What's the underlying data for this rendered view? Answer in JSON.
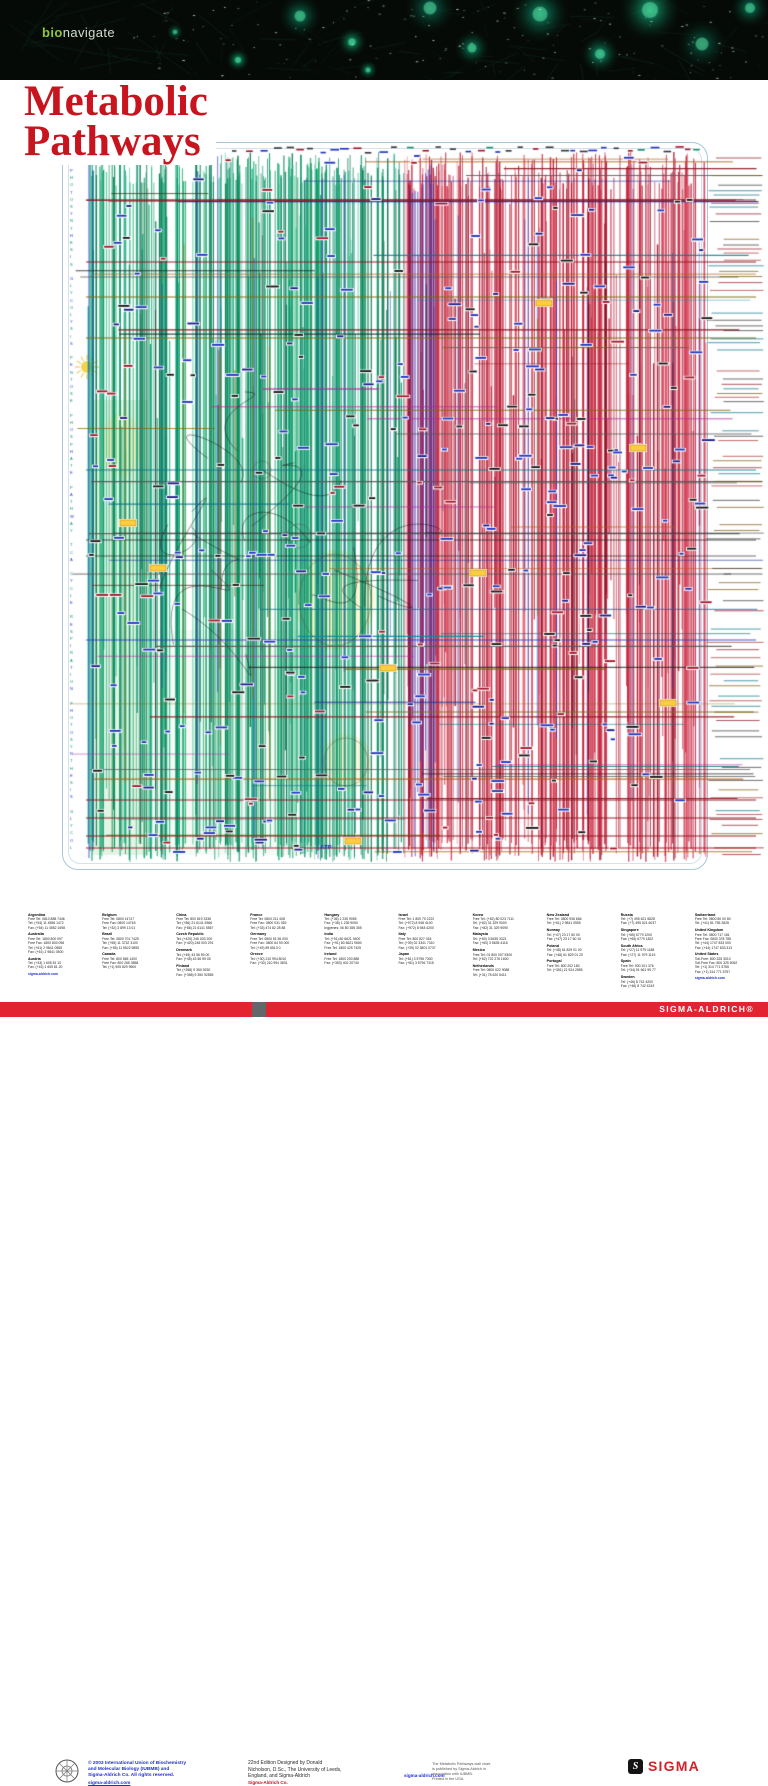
{
  "banner": {
    "brand_bio": "bio",
    "brand_rest": "navigate",
    "bg_color": "#060a07",
    "palette": [
      "#0a7d5d",
      "#0f9e6d",
      "#0a6e55",
      "#0c8a62",
      "#0e8f6a",
      "#129a72",
      "#15a578",
      "#0a5f49"
    ]
  },
  "title": {
    "line1": "Metabolic",
    "line2": "Pathways",
    "color": "#c8141e"
  },
  "chart": {
    "border_color": "#a9c6da",
    "green_palette": [
      "#0a9a6a",
      "#0d8f73",
      "#12a05e",
      "#067a52",
      "#17b27a",
      "#0b8c60",
      "#2fbf8f",
      "#0f7f5f"
    ],
    "red_palette": [
      "#c41f3a",
      "#b3122f",
      "#d43a50",
      "#a00f28",
      "#e05565",
      "#cb2742"
    ],
    "horizontal_palette": [
      "#8b1520",
      "#7a6a10",
      "#0b7285",
      "#1a2f9e",
      "#222222",
      "#b05c10",
      "#8b1520",
      "#b0269c",
      "#0b8a9e",
      "#555555"
    ],
    "label_blue": "#1a2fbf",
    "highlight_yellow": "#ffce3e",
    "atp_label": "ATP",
    "margin_letters": "PHOTOSYNTHESIS GLYCOLYSIS PENTOSE PHOSPHATE PATHWAY TCA CYCLE RESPIRATION "
  },
  "credits": {
    "copyright_lines": [
      "© 2003 International Union of Biochemistry",
      "and Molecular Biology (IUBMB) and",
      "Sigma-Aldrich Co. All rights reserved."
    ],
    "website": "sigma-aldrich.com",
    "edition_lines": [
      "22nd Edition Designed by Donald",
      "Nicholson, D.Sc., The University of Leeds,",
      "England, and Sigma-Aldrich"
    ],
    "sigma_note": "Sigma-Aldrich Co.",
    "fineprint_lines": [
      "The Metabolic Pathways wall chart",
      "is published by Sigma-Aldrich in",
      "association with IUBMB.",
      "Printed in the USA."
    ],
    "logo_text": "SIGMA",
    "logo_glyph": "S"
  },
  "offices": {
    "columns": [
      {
        "entries": [
          {
            "name": "Argentina",
            "lines": [
              "Free Tel: 0810 888 7446",
              "Tel: (+54) 11 4556 1472",
              "Fax: (+54) 11 4552 1698"
            ]
          },
          {
            "name": "Australia",
            "lines": [
              "Free Tel: 1800 800 097",
              "Free Fax: 1800 800 096",
              "Tel: (+61) 2 9841 0555",
              "Fax: (+61) 2 9841 0500"
            ]
          },
          {
            "name": "Austria",
            "lines": [
              "Tel: (+43) 1 605 81 10",
              "Fax: (+43) 1 605 81 20"
            ],
            "link": "sigma-aldrich.com"
          }
        ]
      },
      {
        "entries": [
          {
            "name": "Belgium",
            "lines": [
              "Free Tel: 0800 14747",
              "Free Fax: 0800 14745",
              "Tel: (+32) 3 899 13 01"
            ]
          },
          {
            "name": "Brazil",
            "lines": [
              "Free Tel: 0800 701 7425",
              "Tel: (+55) 11 3732 3100",
              "Fax: (+55) 11 5522 9895"
            ]
          },
          {
            "name": "Canada",
            "lines": [
              "Free Tel: 800 565 1400",
              "Free Fax: 800 265 3858",
              "Tel: (+1) 905 829 9500"
            ]
          }
        ]
      },
      {
        "entries": [
          {
            "name": "China",
            "lines": [
              "Free Tel: 800 819 3336",
              "Tel: (+86) 21 6141 5566",
              "Fax: (+86) 21 6141 5567"
            ]
          },
          {
            "name": "Czech Republic",
            "lines": [
              "Tel: (+420) 246 003 200",
              "Fax: (+420) 246 003 291"
            ]
          },
          {
            "name": "Denmark",
            "lines": [
              "Tel: (+45) 43 56 59 00",
              "Fax: (+45) 43 56 59 05"
            ]
          },
          {
            "name": "Finland",
            "lines": [
              "Tel: (+358) 9 350 9250",
              "Fax: (+358) 9 350 92555"
            ]
          }
        ]
      },
      {
        "entries": [
          {
            "name": "France",
            "lines": [
              "Free Tel: 0800 211 408",
              "Free Fax: 0800 031 052",
              "Tel: (+33) 474 82 28 88"
            ]
          },
          {
            "name": "Germany",
            "lines": [
              "Free Tel: 0800 51 55 000",
              "Free Fax: 0800 64 90 000",
              "Tel: (+49) 89 6513 0"
            ]
          },
          {
            "name": "Greece",
            "lines": [
              "Tel: (+30) 210 994 8010",
              "Fax: (+30) 210 994 3831"
            ]
          }
        ]
      },
      {
        "entries": [
          {
            "name": "Hungary",
            "lines": [
              "Tel: (+36) 1 235 9055",
              "Fax: (+36) 1 235 9050",
              "Ingyenes: 06 80 355 355"
            ]
          },
          {
            "name": "India",
            "lines": [
              "Tel: (+91) 80 6621 9400",
              "Fax: (+91) 80 6621 9650",
              "Free Tel: 1800 425 7425"
            ]
          },
          {
            "name": "Ireland",
            "lines": [
              "Free Tel: 1800 200 888",
              "Fax: (+353) 402 20740"
            ]
          }
        ]
      },
      {
        "entries": [
          {
            "name": "Israel",
            "lines": [
              "Free Tel: 1 800 70 2222",
              "Tel: (+972) 8 948 4100",
              "Fax: (+972) 8 948 4200"
            ]
          },
          {
            "name": "Italy",
            "lines": [
              "Free Tel: 800 827 018",
              "Tel: (+39) 02 3341 7310",
              "Fax: (+39) 02 3801 0737"
            ]
          },
          {
            "name": "Japan",
            "lines": [
              "Tel: (+81) 3 5796 7300",
              "Fax: (+81) 3 5796 7315"
            ]
          }
        ]
      },
      {
        "entries": [
          {
            "name": "Korea",
            "lines": [
              "Free Tel: (+82) 80 023 7111",
              "Tel: (+82) 31 329 9000",
              "Fax: (+82) 31 329 9090"
            ]
          },
          {
            "name": "Malaysia",
            "lines": [
              "Tel: (+60) 3 5635 3321",
              "Fax: (+60) 3 5635 4116"
            ]
          },
          {
            "name": "Mexico",
            "lines": [
              "Free Tel: 01 800 007 5300",
              "Tel: (+52) 722 276 1600"
            ]
          },
          {
            "name": "Netherlands",
            "lines": [
              "Free Tel: 0800 022 9088",
              "Tel: (+31) 78 620 5411"
            ]
          }
        ]
      },
      {
        "entries": [
          {
            "name": "New Zealand",
            "lines": [
              "Free Tel: 0800 936 666",
              "Tel: (+61) 2 9841 0555"
            ]
          },
          {
            "name": "Norway",
            "lines": [
              "Tel: (+47) 23 17 60 00",
              "Fax: (+47) 23 17 60 10"
            ]
          },
          {
            "name": "Poland",
            "lines": [
              "Tel: (+48) 61 829 01 00",
              "Fax: (+48) 61 829 01 20"
            ]
          },
          {
            "name": "Portugal",
            "lines": [
              "Free Tel: 800 202 180",
              "Tel: (+351) 21 924 2555"
            ]
          }
        ]
      },
      {
        "entries": [
          {
            "name": "Russia",
            "lines": [
              "Tel: (+7) 495 621 5828",
              "Fax: (+7) 495 621 6037"
            ]
          },
          {
            "name": "Singapore",
            "lines": [
              "Tel: (+65) 6779 1200",
              "Fax: (+65) 6779 1822"
            ]
          },
          {
            "name": "South Africa",
            "lines": [
              "Tel: (+27) 11 979 1188",
              "Fax: (+27) 11 979 1119"
            ]
          },
          {
            "name": "Spain",
            "lines": [
              "Free Tel: 900 101 376",
              "Tel: (+34) 91 661 99 77"
            ]
          },
          {
            "name": "Sweden",
            "lines": [
              "Tel: (+46) 8 742 4200",
              "Fax: (+46) 8 742 4243"
            ]
          }
        ]
      },
      {
        "entries": [
          {
            "name": "Switzerland",
            "lines": [
              "Free Tel: 0800 80 00 80",
              "Tel: (+41) 81 755 2828"
            ]
          },
          {
            "name": "United Kingdom",
            "lines": [
              "Free Tel: 0800 717 181",
              "Free Fax: 0800 378 785",
              "Tel: (+44) 1747 833 000",
              "Fax: (+44) 1747 833 313"
            ]
          },
          {
            "name": "United States",
            "lines": [
              "Toll-Free: 800 325 3010",
              "Toll-Free Fax: 800 325 5052",
              "Tel: (+1) 314 771 5765",
              "Fax: (+1) 314 771 5757"
            ],
            "link": "sigma-aldrich.com"
          }
        ]
      }
    ]
  },
  "footer": {
    "brand": "SIGMA-ALDRICH®",
    "bar_color": "#e42330"
  }
}
